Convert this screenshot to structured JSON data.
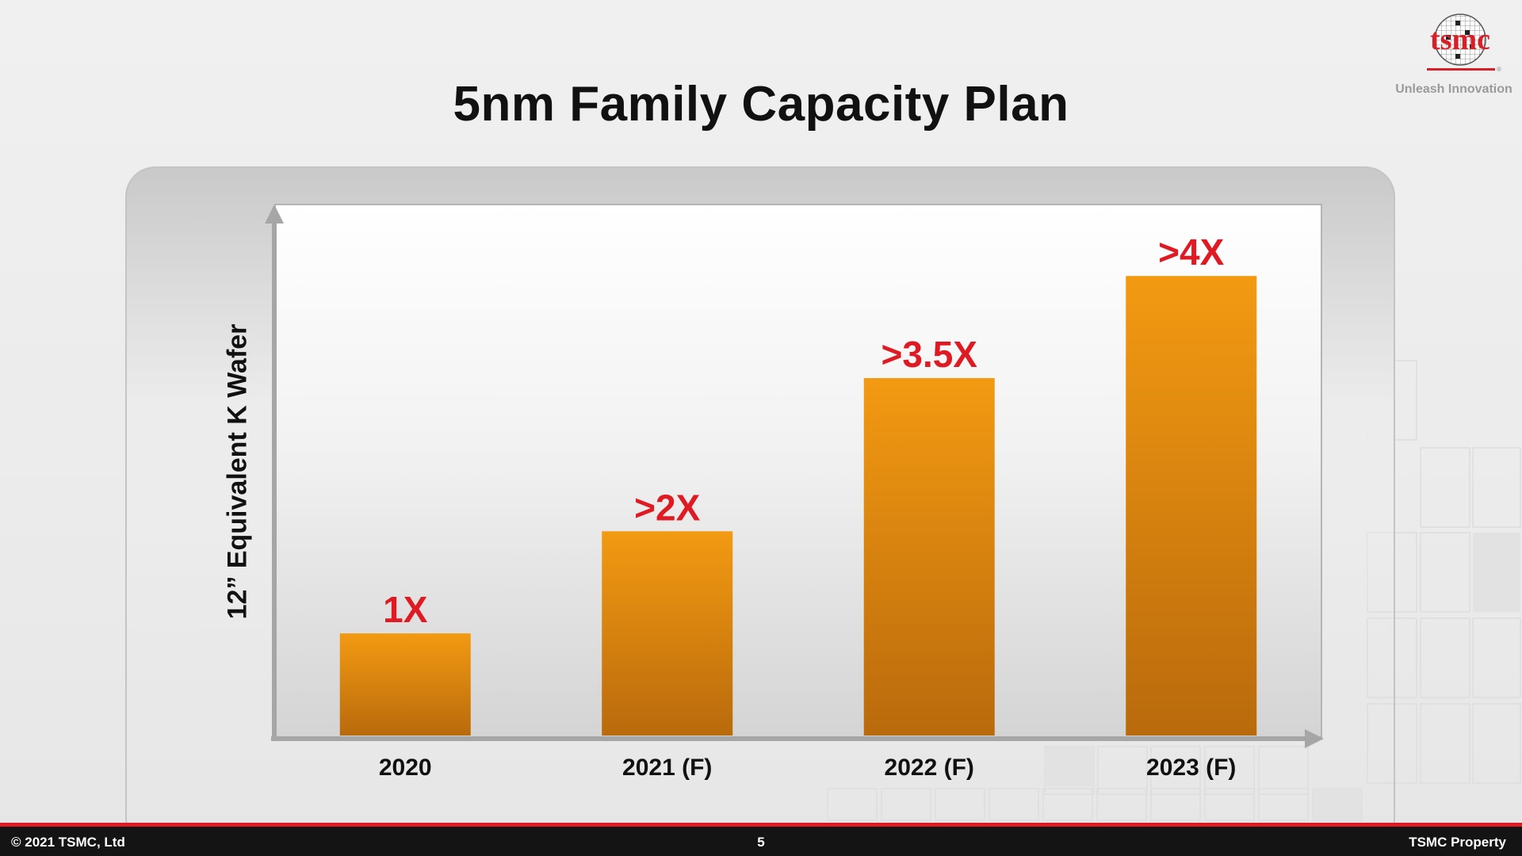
{
  "slide": {
    "title": "5nm Family Capacity Plan"
  },
  "logo": {
    "wordmark": "tsmc",
    "registered": "®",
    "tagline": "Unleash Innovation"
  },
  "footer": {
    "copyright": "© 2021 TSMC, Ltd",
    "page_number": "5",
    "property": "TSMC Property"
  },
  "colors": {
    "bar_top": "#f39a12",
    "bar_bottom": "#b96a0c",
    "data_label": "#e01a22",
    "footer_bar": "#141414",
    "footer_accent": "#e01a22",
    "logo_red": "#d81e26"
  },
  "chart_data": {
    "type": "bar",
    "title": "",
    "xlabel": "",
    "ylabel": "12”  Equivalent K Wafer",
    "categories": [
      "2020",
      "2021 (F)",
      "2022 (F)",
      "2023 (F)"
    ],
    "values": [
      1,
      2,
      3.5,
      4.5
    ],
    "data_labels": [
      "1X",
      ">2X",
      ">3.5X",
      ">4X"
    ],
    "ylim": [
      0,
      5.2
    ],
    "grid": false,
    "legend": "none",
    "y_ticks_shown": false
  }
}
